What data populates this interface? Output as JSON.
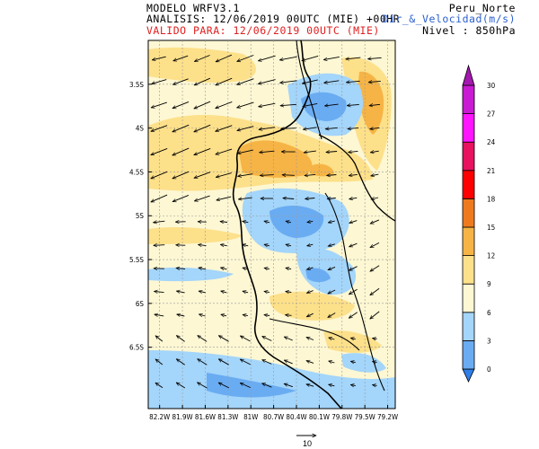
{
  "header": {
    "model": "MODELO WRFV3.1",
    "analysis": "ANALISIS: 12/06/2019 00UTC (MIE) +00HR",
    "valid": "VALIDO PARA: 12/06/2019 00UTC (MIE)",
    "domain": "Peru_Norte",
    "variable": "Dir_&_Velocidad(m/s)",
    "level": "Nivel : 850hPa"
  },
  "map": {
    "lat_labels": [
      "3.5S",
      "4S",
      "4.5S",
      "5S",
      "5.5S",
      "6S",
      "6.5S"
    ],
    "lon_labels": [
      "82.2W",
      "81.9W",
      "81.6W",
      "81.3W",
      "81W",
      "80.7W",
      "80.4W",
      "80.1W",
      "79.8W",
      "79.5W",
      "79.2W"
    ],
    "lat_range": [
      -7.2,
      -3.0
    ],
    "lon_range": [
      -82.35,
      -79.1
    ]
  },
  "colorbar": {
    "ticks": [
      "0",
      "3",
      "6",
      "9",
      "12",
      "15",
      "18",
      "21",
      "24",
      "27",
      "30"
    ],
    "colors": [
      "#2f7fe8",
      "#6aacf2",
      "#a4d5fa",
      "#fdf7d3",
      "#fde08a",
      "#f6b446",
      "#ef7a1e",
      "#ff0000",
      "#e8125e",
      "#ff14ff",
      "#c81ad2",
      "#a418b0"
    ]
  },
  "reference_vector": {
    "label": "10"
  }
}
